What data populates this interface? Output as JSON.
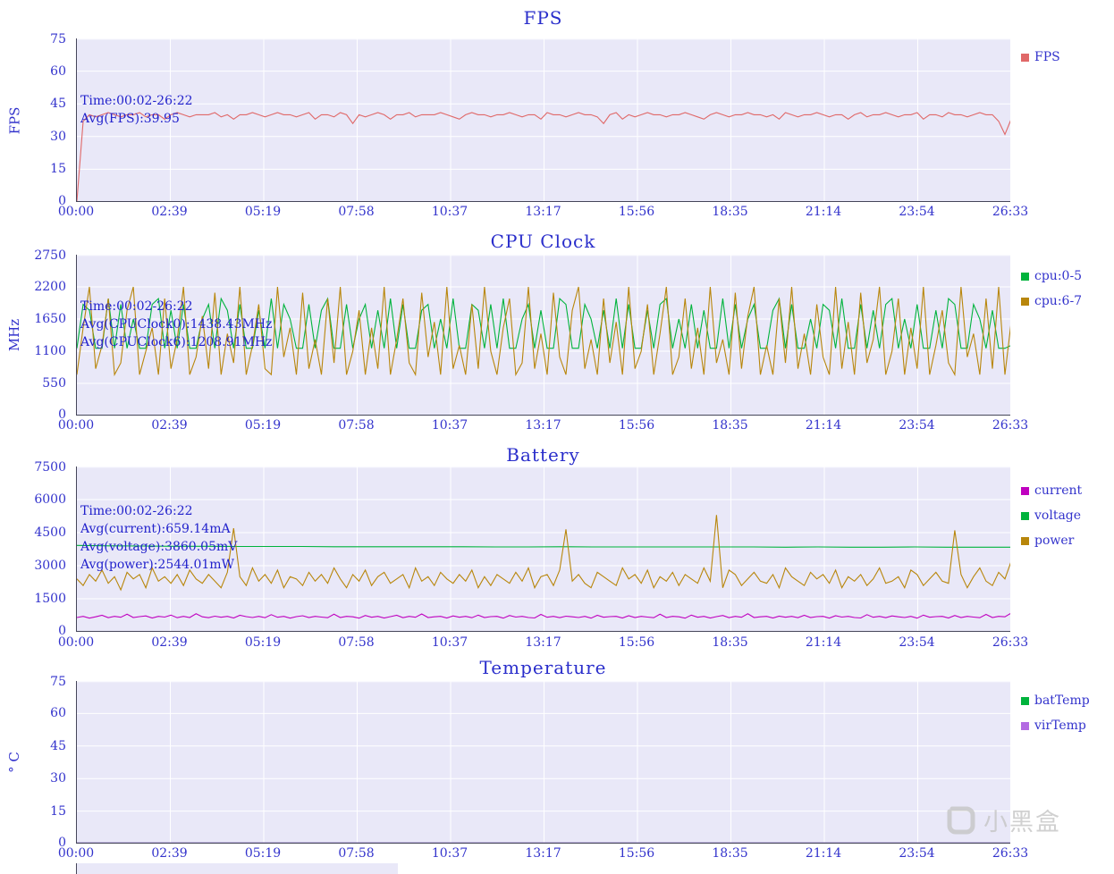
{
  "palette": {
    "plot_bg": "#e9e8f8",
    "grid": "#ffffff",
    "axis_text": "#3333cc",
    "title_text": "#2a2ecb",
    "annotation_text": "#2222cc",
    "watermark_gray": "#c8c8c8",
    "fps_red": "#e06868",
    "green": "#00b33c",
    "dark_yellow": "#b8860b",
    "magenta": "#bf00bf",
    "violet": "#b36ae2"
  },
  "watermark": {
    "text": "小黑盒"
  },
  "chart_data": [
    {
      "type": "line",
      "title": "FPS",
      "ylabel": "FPS",
      "ylim": [
        0,
        75
      ],
      "yticks": [
        0,
        15,
        30,
        45,
        60,
        75
      ],
      "xticks": [
        "00:00",
        "02:39",
        "05:19",
        "07:58",
        "10:37",
        "13:17",
        "15:56",
        "18:35",
        "21:14",
        "23:54",
        "26:33"
      ],
      "x_range_seconds": [
        0,
        1593
      ],
      "grid": true,
      "legend_position": "right",
      "annotations": [
        "Time:00:02-26:22",
        "Avg(FPS):39.95"
      ],
      "series": [
        {
          "name": "FPS",
          "color": "#e06868",
          "values": [
            0,
            37,
            40,
            39,
            40,
            41,
            40,
            39,
            40,
            40,
            41,
            39,
            40,
            40,
            38,
            40,
            41,
            40,
            39,
            40,
            40,
            40,
            41,
            39,
            40,
            38,
            40,
            40,
            41,
            40,
            39,
            40,
            41,
            40,
            40,
            39,
            40,
            41,
            38,
            40,
            40,
            39,
            41,
            40,
            36,
            40,
            39,
            40,
            41,
            40,
            38,
            40,
            40,
            41,
            39,
            40,
            40,
            40,
            41,
            40,
            39,
            38,
            40,
            41,
            40,
            40,
            39,
            40,
            40,
            41,
            40,
            39,
            40,
            40,
            38,
            41,
            40,
            40,
            39,
            40,
            41,
            40,
            40,
            39,
            36,
            40,
            41,
            38,
            40,
            39,
            40,
            41,
            40,
            40,
            39,
            40,
            40,
            41,
            40,
            39,
            38,
            40,
            41,
            40,
            39,
            40,
            40,
            41,
            40,
            40,
            39,
            40,
            38,
            41,
            40,
            39,
            40,
            40,
            41,
            40,
            39,
            40,
            40,
            38,
            40,
            41,
            39,
            40,
            40,
            41,
            40,
            39,
            40,
            40,
            41,
            38,
            40,
            40,
            39,
            41,
            40,
            40,
            39,
            40,
            41,
            40,
            40,
            37,
            31,
            38
          ]
        }
      ]
    },
    {
      "type": "line",
      "title": "CPU Clock",
      "ylabel": "MHz",
      "ylim": [
        0,
        2750
      ],
      "yticks": [
        0,
        550,
        1100,
        1650,
        2200,
        2750
      ],
      "xticks": [
        "00:00",
        "02:39",
        "05:19",
        "07:58",
        "10:37",
        "13:17",
        "15:56",
        "18:35",
        "21:14",
        "23:54",
        "26:33"
      ],
      "x_range_seconds": [
        0,
        1593
      ],
      "grid": true,
      "legend_position": "right",
      "annotations": [
        "Time:00:02-26:22",
        "Avg(CPUClock0):1438.43MHz",
        "Avg(CPUClock6):1208.91MHz"
      ],
      "series": [
        {
          "name": "cpu:0-5",
          "color": "#00b33c",
          "values": [
            1150,
            1900,
            1800,
            1150,
            1150,
            2000,
            1150,
            1900,
            1150,
            1650,
            1150,
            1150,
            1900,
            2000,
            1150,
            1800,
            1150,
            1900,
            1150,
            1150,
            1650,
            1900,
            1150,
            2000,
            1800,
            1150,
            1900,
            1150,
            1150,
            1800,
            1150,
            2000,
            1150,
            1900,
            1650,
            1150,
            1150,
            1900,
            1150,
            1800,
            2000,
            1150,
            1150,
            1900,
            1150,
            1650,
            1900,
            1150,
            1800,
            1150,
            2000,
            1150,
            1900,
            1150,
            1150,
            1800,
            1900,
            1150,
            1650,
            1150,
            2000,
            1150,
            1150,
            1900,
            1800,
            1150,
            1900,
            1150,
            2000,
            1150,
            1150,
            1650,
            1900,
            1150,
            1800,
            1150,
            1150,
            2000,
            1900,
            1150,
            1150,
            1900,
            1650,
            1150,
            1800,
            1150,
            2000,
            1150,
            1900,
            1150,
            1150,
            1800,
            1150,
            1900,
            2000,
            1150,
            1650,
            1150,
            1900,
            1150,
            1800,
            1150,
            1150,
            2000,
            1150,
            1900,
            1150,
            1650,
            1900,
            1150,
            1150,
            1800,
            2000,
            1150,
            1900,
            1150,
            1150,
            1650,
            1150,
            1900,
            1800,
            1150,
            2000,
            1150,
            1150,
            1900,
            1150,
            1800,
            1150,
            1900,
            2000,
            1150,
            1650,
            1150,
            1900,
            1150,
            1150,
            1800,
            1150,
            2000,
            1900,
            1150,
            1150,
            1900,
            1650,
            1150,
            1800,
            1150,
            1150,
            1200
          ]
        },
        {
          "name": "cpu:6-7",
          "color": "#b8860b",
          "values": [
            700,
            1500,
            2200,
            800,
            1200,
            2000,
            700,
            900,
            1800,
            2200,
            700,
            1100,
            1500,
            700,
            2000,
            800,
            1300,
            2200,
            700,
            1000,
            1700,
            800,
            2100,
            700,
            1400,
            900,
            2200,
            700,
            1200,
            1900,
            800,
            700,
            2200,
            1000,
            1500,
            700,
            2100,
            800,
            1300,
            700,
            2000,
            900,
            2200,
            700,
            1100,
            1800,
            700,
            1500,
            800,
            2200,
            700,
            1300,
            2000,
            900,
            700,
            2100,
            1000,
            1600,
            700,
            2200,
            800,
            1200,
            700,
            1900,
            800,
            2200,
            1100,
            700,
            1500,
            2000,
            700,
            900,
            2200,
            800,
            1400,
            700,
            2100,
            1000,
            700,
            1800,
            2200,
            800,
            1300,
            700,
            2000,
            900,
            1600,
            700,
            2200,
            800,
            1100,
            1900,
            700,
            1400,
            2200,
            700,
            1000,
            2000,
            800,
            1500,
            700,
            2200,
            900,
            1300,
            700,
            2100,
            800,
            1700,
            2200,
            700,
            1200,
            700,
            2000,
            900,
            2200,
            800,
            1400,
            700,
            1900,
            1000,
            700,
            2200,
            800,
            1600,
            700,
            2100,
            900,
            1300,
            2200,
            700,
            1100,
            2000,
            700,
            1500,
            800,
            2200,
            700,
            1200,
            1800,
            900,
            700,
            2200,
            1000,
            1400,
            700,
            2000,
            800,
            2200,
            700,
            1600
          ]
        }
      ]
    },
    {
      "type": "line",
      "title": "Battery",
      "ylabel": "",
      "ylim": [
        0,
        7500
      ],
      "yticks": [
        0,
        1500,
        3000,
        4500,
        6000,
        7500
      ],
      "xticks": [
        "00:00",
        "02:39",
        "05:19",
        "07:58",
        "10:37",
        "13:17",
        "15:56",
        "18:35",
        "21:14",
        "23:54",
        "26:33"
      ],
      "x_range_seconds": [
        0,
        1593
      ],
      "grid": true,
      "legend_position": "right",
      "annotations": [
        "Time:00:02-26:22",
        "Avg(current):659.14mA",
        "Avg(voltage):3860.05mV",
        "Avg(power):2544.01mW"
      ],
      "series": [
        {
          "name": "current",
          "color": "#bf00bf",
          "values": [
            650,
            700,
            620,
            680,
            750,
            640,
            700,
            660,
            800,
            650,
            690,
            720,
            630,
            700,
            670,
            760,
            640,
            700,
            650,
            820,
            680,
            640,
            710,
            660,
            700,
            630,
            750,
            690,
            650,
            700,
            640,
            780,
            660,
            700,
            620,
            690,
            730,
            650,
            700,
            670,
            640,
            800,
            650,
            700,
            680,
            620,
            740,
            660,
            700,
            630,
            690,
            750,
            640,
            700,
            660,
            810,
            650,
            680,
            700,
            630,
            720,
            660,
            700,
            640,
            760,
            650,
            690,
            700,
            620,
            740,
            670,
            700,
            650,
            630,
            790,
            660,
            700,
            640,
            710,
            680,
            650,
            700,
            620,
            750,
            660,
            690,
            700,
            630,
            730,
            650,
            700,
            670,
            640,
            800,
            650,
            700,
            680,
            620,
            760,
            660,
            700,
            630,
            690,
            740,
            640,
            700,
            660,
            820,
            650,
            680,
            700,
            630,
            710,
            660,
            700,
            640,
            750,
            650,
            690,
            700,
            620,
            730,
            670,
            700,
            650,
            630,
            780,
            660,
            700,
            640,
            720,
            680,
            650,
            700,
            620,
            760,
            660,
            690,
            700,
            630,
            740,
            650,
            700,
            670,
            640,
            790,
            650,
            700,
            680,
            850
          ]
        },
        {
          "name": "voltage",
          "color": "#00b33c",
          "values": [
            3920,
            3900,
            3890,
            3880,
            3880,
            3870,
            3870,
            3870,
            3860,
            3860,
            3860,
            3860,
            3860,
            3850,
            3850,
            3860,
            3850,
            3850,
            3850,
            3850,
            3850,
            3850,
            3840,
            3850,
            3840,
            3840,
            3850,
            3840,
            3840,
            3840
          ]
        },
        {
          "name": "power",
          "color": "#b8860b",
          "values": [
            2400,
            2100,
            2600,
            2300,
            2800,
            2200,
            2500,
            1900,
            2700,
            2400,
            2600,
            2000,
            2900,
            2300,
            2500,
            2200,
            2600,
            2100,
            2800,
            2400,
            2200,
            2600,
            2300,
            2000,
            2700,
            4700,
            2500,
            2100,
            2900,
            2300,
            2600,
            2200,
            2800,
            2000,
            2500,
            2400,
            2100,
            2700,
            2300,
            2600,
            2200,
            2900,
            2400,
            2000,
            2600,
            2300,
            2800,
            2100,
            2500,
            2700,
            2200,
            2400,
            2600,
            2000,
            2900,
            2300,
            2500,
            2100,
            2700,
            2400,
            2200,
            2600,
            2300,
            2800,
            2000,
            2500,
            2100,
            2600,
            2400,
            2200,
            2700,
            2300,
            2900,
            2000,
            2500,
            2600,
            2100,
            2800,
            4650,
            2300,
            2600,
            2200,
            2000,
            2700,
            2500,
            2300,
            2100,
            2900,
            2400,
            2600,
            2200,
            2800,
            2000,
            2500,
            2300,
            2700,
            2100,
            2600,
            2400,
            2200,
            2900,
            2300,
            5300,
            2000,
            2800,
            2600,
            2100,
            2400,
            2700,
            2300,
            2200,
            2600,
            2000,
            2900,
            2500,
            2300,
            2100,
            2700,
            2400,
            2600,
            2200,
            2800,
            2000,
            2500,
            2300,
            2600,
            2100,
            2400,
            2900,
            2200,
            2300,
            2500,
            2000,
            2800,
            2600,
            2100,
            2400,
            2700,
            2300,
            2200,
            4600,
            2600,
            2000,
            2500,
            2900,
            2300,
            2100,
            2700,
            2400,
            3200
          ]
        }
      ]
    },
    {
      "type": "line",
      "title": "Temperature",
      "ylabel": "° C",
      "ylim": [
        0,
        75
      ],
      "yticks": [
        0,
        15,
        30,
        45,
        60,
        75
      ],
      "xticks": [
        "00:00",
        "02:39",
        "05:19",
        "07:58",
        "10:37",
        "13:17",
        "15:56",
        "18:35",
        "21:14",
        "23:54",
        "26:33"
      ],
      "x_range_seconds": [
        0,
        1593
      ],
      "grid": true,
      "legend_position": "right",
      "annotations": [],
      "series": [
        {
          "name": "batTemp",
          "color": "#00b33c",
          "values": [
            0,
            0
          ]
        },
        {
          "name": "virTemp",
          "color": "#b36ae2",
          "values": [
            0,
            0
          ]
        }
      ]
    }
  ]
}
